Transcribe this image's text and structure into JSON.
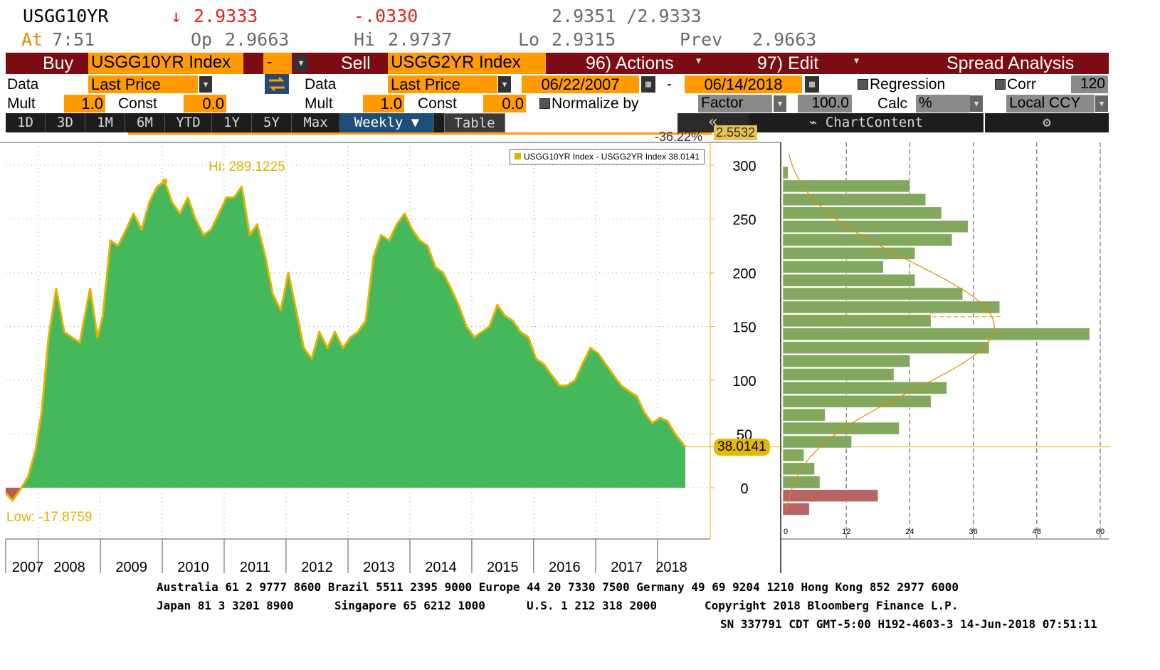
{
  "quote": {
    "ticker": "USGG10YR",
    "arrow": "↓",
    "last": "2.9333",
    "change": "-.0330",
    "bid_ask": "2.9351 /2.9333",
    "at_label": "At",
    "time": "7:51",
    "op_label": "Op",
    "op": "2.9663",
    "hi_label": "Hi",
    "hi": "2.9737",
    "lo_label": "Lo",
    "lo": "2.9315",
    "prev_label": "Prev",
    "prev": "2.9663"
  },
  "toolbar": {
    "buy_label": "Buy",
    "buy_security": "USGG10YR Index",
    "operator": "-",
    "sell_label": "Sell",
    "sell_security": "USGG2YR Index",
    "actions": "96) Actions",
    "edit": "97) Edit",
    "spread_analysis": "Spread Analysis"
  },
  "settings": {
    "data_label": "Data",
    "buy_data": "Last Price",
    "sell_data_label": "Data",
    "sell_data": "Last Price",
    "start_date": "06/22/2007",
    "date_sep": "-",
    "end_date": "06/14/2018",
    "regression": "Regression",
    "corr": "Corr",
    "corr_value": "120",
    "mult_label": "Mult",
    "buy_mult": "1.0",
    "const_label": "Const",
    "buy_const": "0.0",
    "sell_mult_label": "Mult",
    "sell_mult": "1.0",
    "sell_const_label": "Const",
    "sell_const": "0.0",
    "normalize_by": "Normalize by",
    "factor": "Factor",
    "factor_value": "100.0",
    "calc_label": "Calc",
    "calc_value": "%",
    "ccy": "Local CCY"
  },
  "tabs": [
    {
      "label": "1D"
    },
    {
      "label": "3D"
    },
    {
      "label": "1M"
    },
    {
      "label": "6M"
    },
    {
      "label": "YTD"
    },
    {
      "label": "1Y"
    },
    {
      "label": "5Y"
    },
    {
      "label": "Max"
    },
    {
      "label": "Weekly ▼"
    }
  ],
  "table_label": "Table",
  "collapse_icon": "«",
  "chart_content_label": "ChartContent",
  "settings_icon": "gear-icon",
  "overlay_pct": "-36.22%",
  "overlay_val": "2.5532",
  "colors": {
    "area": "#46b85c",
    "line": "#e0b300",
    "negative": "#bc5a5a",
    "hist_bar": "#82a85e",
    "hist_neg": "#b86464",
    "header_red": "#7b0c14",
    "orange_field": "#ff9b00"
  },
  "chart_data": {
    "type": "area",
    "legend": "USGG10YR Index - USGG2YR Index 38.0141",
    "hi_label": "Hi: 289.1225",
    "low_label": "Low: -17.8759",
    "last_value_label": "38.0141",
    "last_value": 38.0141,
    "ylim": [
      -25,
      305
    ],
    "y_ticks": [
      "300",
      "250",
      "200",
      "150",
      "100",
      "50",
      "0"
    ],
    "x_labels": [
      "2007",
      "2008",
      "2009",
      "2010",
      "2011",
      "2012",
      "2013",
      "2014",
      "2015",
      "2016",
      "2017",
      "2018"
    ],
    "x_range": [
      "2007-06-22",
      "2018-06-14"
    ],
    "series": [
      {
        "x": [
          "2007-06-22",
          "2007-08-01",
          "2007-09-15",
          "2007-11-01",
          "2007-12-15",
          "2008-01-20",
          "2008-03-01",
          "2008-04-15",
          "2008-06-01",
          "2008-07-15",
          "2008-09-01",
          "2008-10-01",
          "2008-11-01",
          "2008-12-15",
          "2009-01-15",
          "2009-03-01",
          "2009-04-15",
          "2009-06-01",
          "2009-07-15",
          "2009-09-01",
          "2009-10-15",
          "2009-12-01",
          "2010-01-15",
          "2010-03-01",
          "2010-04-15",
          "2010-06-01",
          "2010-07-15",
          "2010-09-01",
          "2010-10-15",
          "2010-12-01",
          "2011-01-15",
          "2011-03-01",
          "2011-04-15",
          "2011-06-01",
          "2011-07-15",
          "2011-09-01",
          "2011-10-15",
          "2011-12-01",
          "2012-01-15",
          "2012-03-01",
          "2012-04-15",
          "2012-06-01",
          "2012-07-15",
          "2012-09-01",
          "2012-10-15",
          "2012-12-01",
          "2013-01-15",
          "2013-03-01",
          "2013-04-15",
          "2013-06-01",
          "2013-07-15",
          "2013-09-01",
          "2013-10-15",
          "2013-12-01",
          "2014-01-15",
          "2014-03-01",
          "2014-04-15",
          "2014-06-01",
          "2014-07-15",
          "2014-09-01",
          "2014-10-15",
          "2014-12-01",
          "2015-01-15",
          "2015-03-01",
          "2015-04-15",
          "2015-06-01",
          "2015-07-15",
          "2015-09-01",
          "2015-10-15",
          "2015-12-01",
          "2016-01-15",
          "2016-03-01",
          "2016-04-15",
          "2016-06-01",
          "2016-07-15",
          "2016-09-01",
          "2016-10-15",
          "2016-12-01",
          "2017-01-15",
          "2017-03-01",
          "2017-04-15",
          "2017-06-01",
          "2017-07-15",
          "2017-09-01",
          "2017-10-15",
          "2017-12-01",
          "2018-01-15",
          "2018-03-01",
          "2018-04-15",
          "2018-06-14"
        ],
        "y": [
          -5,
          -12,
          -2,
          10,
          35,
          70,
          140,
          185,
          145,
          140,
          135,
          160,
          185,
          140,
          160,
          230,
          225,
          240,
          255,
          240,
          265,
          280,
          285,
          265,
          255,
          270,
          250,
          235,
          240,
          255,
          270,
          270,
          280,
          235,
          245,
          215,
          180,
          165,
          200,
          165,
          130,
          120,
          145,
          130,
          145,
          130,
          140,
          145,
          155,
          215,
          235,
          230,
          245,
          255,
          240,
          230,
          225,
          205,
          200,
          185,
          170,
          150,
          140,
          145,
          150,
          170,
          160,
          155,
          145,
          140,
          120,
          115,
          105,
          95,
          95,
          100,
          115,
          130,
          125,
          115,
          105,
          95,
          90,
          85,
          70,
          60,
          65,
          62,
          50,
          38.0141
        ]
      }
    ]
  },
  "histogram": {
    "x_ticks": [
      "0",
      "12",
      "24",
      "36",
      "48",
      "60"
    ],
    "xlim": [
      0,
      60
    ],
    "bins": [
      {
        "center": 297.5,
        "count": 1
      },
      {
        "center": 287.5,
        "count": 24
      },
      {
        "center": 277.5,
        "count": 27
      },
      {
        "center": 267.5,
        "count": 30
      },
      {
        "center": 257.5,
        "count": 35
      },
      {
        "center": 247.5,
        "count": 32
      },
      {
        "center": 237.5,
        "count": 25
      },
      {
        "center": 227.5,
        "count": 19
      },
      {
        "center": 217.5,
        "count": 25
      },
      {
        "center": 207.5,
        "count": 34
      },
      {
        "center": 197.5,
        "count": 41
      },
      {
        "center": 187.5,
        "count": 28
      },
      {
        "center": 177.5,
        "count": 58
      },
      {
        "center": 167.5,
        "count": 39
      },
      {
        "center": 157.5,
        "count": 24
      },
      {
        "center": 147.5,
        "count": 21
      },
      {
        "center": 137.5,
        "count": 31
      },
      {
        "center": 127.5,
        "count": 28
      },
      {
        "center": 117.5,
        "count": 8
      },
      {
        "center": 107.5,
        "count": 22
      },
      {
        "center": 97.5,
        "count": 13
      },
      {
        "center": 87.5,
        "count": 4
      },
      {
        "center": 77.5,
        "count": 6
      },
      {
        "center": 67.5,
        "count": 7
      },
      {
        "center": 57.5,
        "count": 18,
        "negative": true
      },
      {
        "center": 47.5,
        "count": 5,
        "negative": true
      }
    ]
  },
  "footer": {
    "line1": "Australia 61 2 9777 8600 Brazil 5511 2395 9000 Europe 44 20 7330 7500 Germany 49 69 9204 1210 Hong Kong 852 2977 6000",
    "line2a": "Japan 81 3 3201 8900",
    "line2b": "Singapore 65 6212 1000",
    "line2c": "U.S. 1 212 318 2000",
    "line2d": "Copyright 2018 Bloomberg Finance L.P.",
    "line3": "SN 337791 CDT  GMT-5:00 H192-4603-3 14-Jun-2018 07:51:11"
  }
}
